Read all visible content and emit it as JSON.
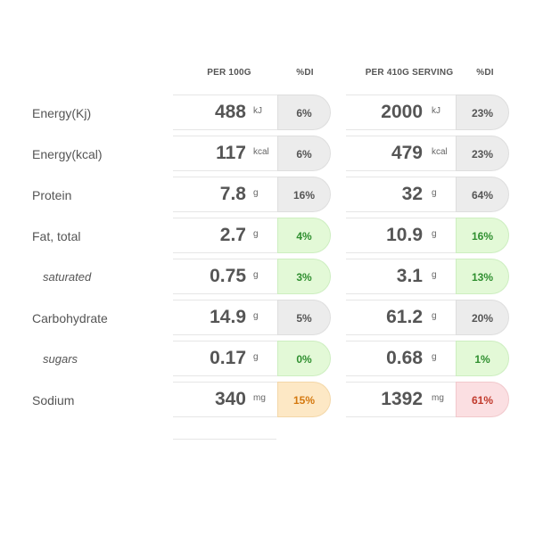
{
  "headers": {
    "per100g": "PER 100G",
    "di_100g": "%DI",
    "per_serving": "PER 410G SERVING",
    "di_serving": "%DI"
  },
  "rows": [
    {
      "label": "Energy(Kj)",
      "sub": false,
      "val100": "488",
      "unit100": "kJ",
      "di100": "6%",
      "di100_level": "grey",
      "valServ": "2000",
      "unitServ": "kJ",
      "diServ": "23%",
      "diServ_level": "grey"
    },
    {
      "label": "Energy(kcal)",
      "sub": false,
      "val100": "117",
      "unit100": "kcal",
      "di100": "6%",
      "di100_level": "grey",
      "valServ": "479",
      "unitServ": "kcal",
      "diServ": "23%",
      "diServ_level": "grey"
    },
    {
      "label": "Protein",
      "sub": false,
      "val100": "7.8",
      "unit100": "g",
      "di100": "16%",
      "di100_level": "grey",
      "valServ": "32",
      "unitServ": "g",
      "diServ": "64%",
      "diServ_level": "grey"
    },
    {
      "label": "Fat, total",
      "sub": false,
      "val100": "2.7",
      "unit100": "g",
      "di100": "4%",
      "di100_level": "green",
      "valServ": "10.9",
      "unitServ": "g",
      "diServ": "16%",
      "diServ_level": "green"
    },
    {
      "label": "saturated",
      "sub": true,
      "val100": "0.75",
      "unit100": "g",
      "di100": "3%",
      "di100_level": "green",
      "valServ": "3.1",
      "unitServ": "g",
      "diServ": "13%",
      "diServ_level": "green"
    },
    {
      "label": "Carbohydrate",
      "sub": false,
      "val100": "14.9",
      "unit100": "g",
      "di100": "5%",
      "di100_level": "grey",
      "valServ": "61.2",
      "unitServ": "g",
      "diServ": "20%",
      "diServ_level": "grey"
    },
    {
      "label": "sugars",
      "sub": true,
      "val100": "0.17",
      "unit100": "g",
      "di100": "0%",
      "di100_level": "green",
      "valServ": "0.68",
      "unitServ": "g",
      "diServ": "1%",
      "diServ_level": "green"
    },
    {
      "label": "Sodium",
      "sub": false,
      "val100": "340",
      "unit100": "mg",
      "di100": "15%",
      "di100_level": "orange",
      "valServ": "1392",
      "unitServ": "mg",
      "diServ": "61%",
      "diServ_level": "red"
    }
  ],
  "colors": {
    "grey": "#ececec",
    "green": "#e3f9d7",
    "orange": "#fde8c5",
    "red": "#fbdfe2"
  }
}
